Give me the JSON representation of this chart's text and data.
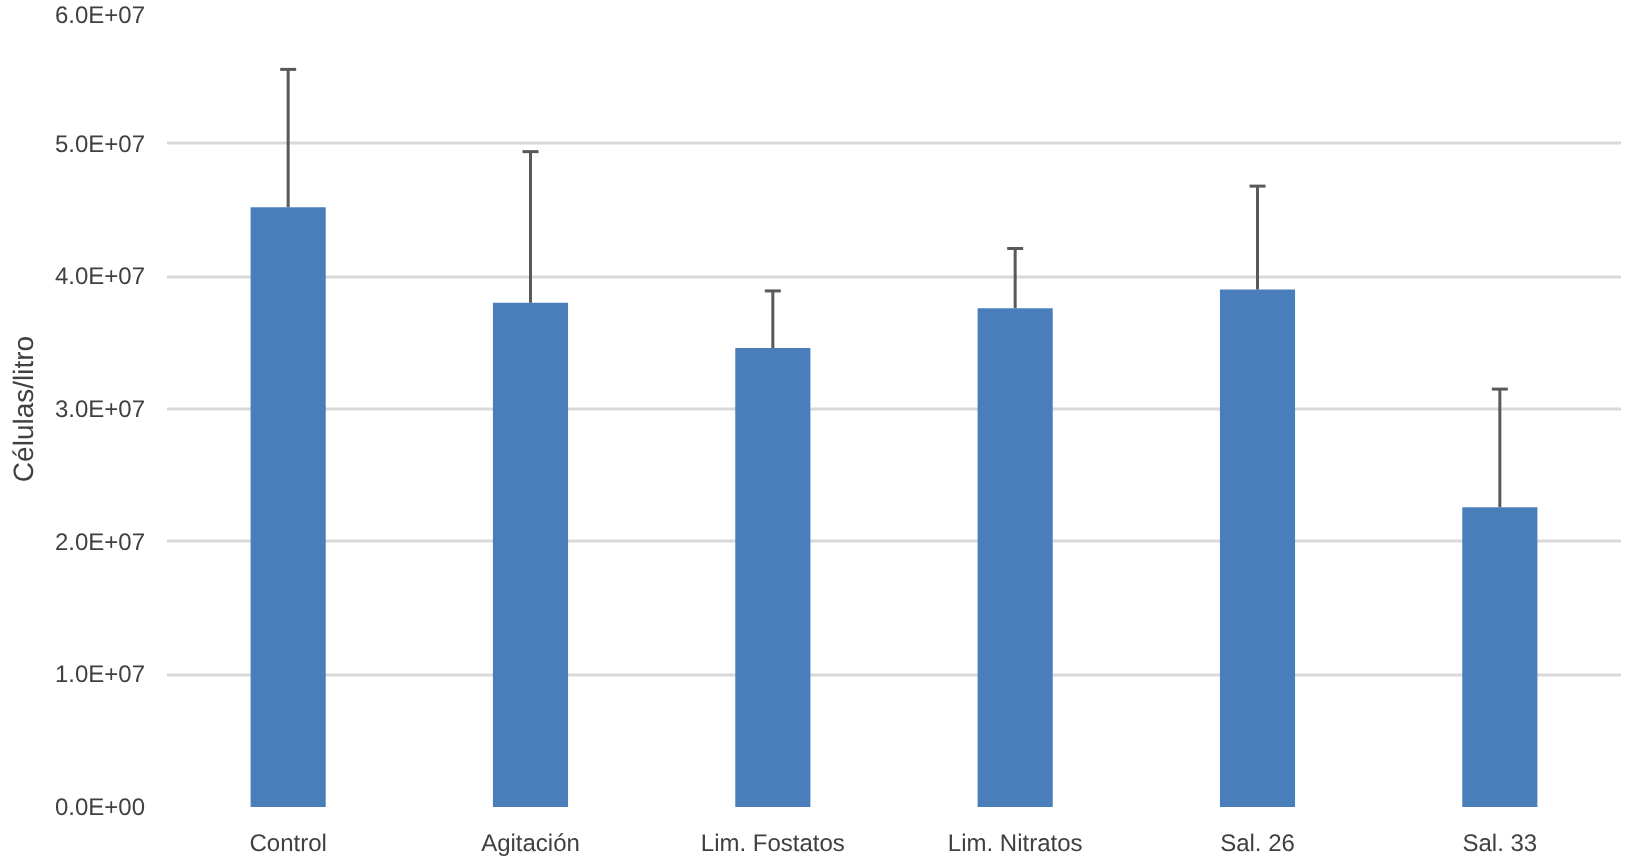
{
  "chart_data": {
    "type": "bar",
    "ylabel": "Células/litro",
    "categories": [
      "Control",
      "Agitación",
      "Lim. Fostatos",
      "Lim. Nitratos",
      "Sal. 26",
      "Sal. 33"
    ],
    "values": [
      45200000,
      38000000,
      34600000,
      37600000,
      39000000,
      22600000
    ],
    "errors": [
      [
        45200000,
        55600000
      ],
      [
        38000000,
        49400000
      ],
      [
        34600000,
        38900000
      ],
      [
        37600000,
        42100000
      ],
      [
        39000000,
        46800000
      ],
      [
        22600000,
        31500000
      ]
    ],
    "color": "#4a7ebb",
    "ylim": [
      0,
      60000000
    ],
    "yticks": [
      {
        "value": 0,
        "label": "0.0E+00"
      },
      {
        "value": 10000000,
        "label": "1.0E+07"
      },
      {
        "value": 20000000,
        "label": "2.0E+07"
      },
      {
        "value": 30000000,
        "label": "3.0E+07"
      },
      {
        "value": 40000000,
        "label": "4.0E+07"
      },
      {
        "value": 50000000,
        "label": "5.0E+07"
      },
      {
        "value": 60000000,
        "label": "6.0E+07"
      }
    ],
    "grid": "y"
  }
}
